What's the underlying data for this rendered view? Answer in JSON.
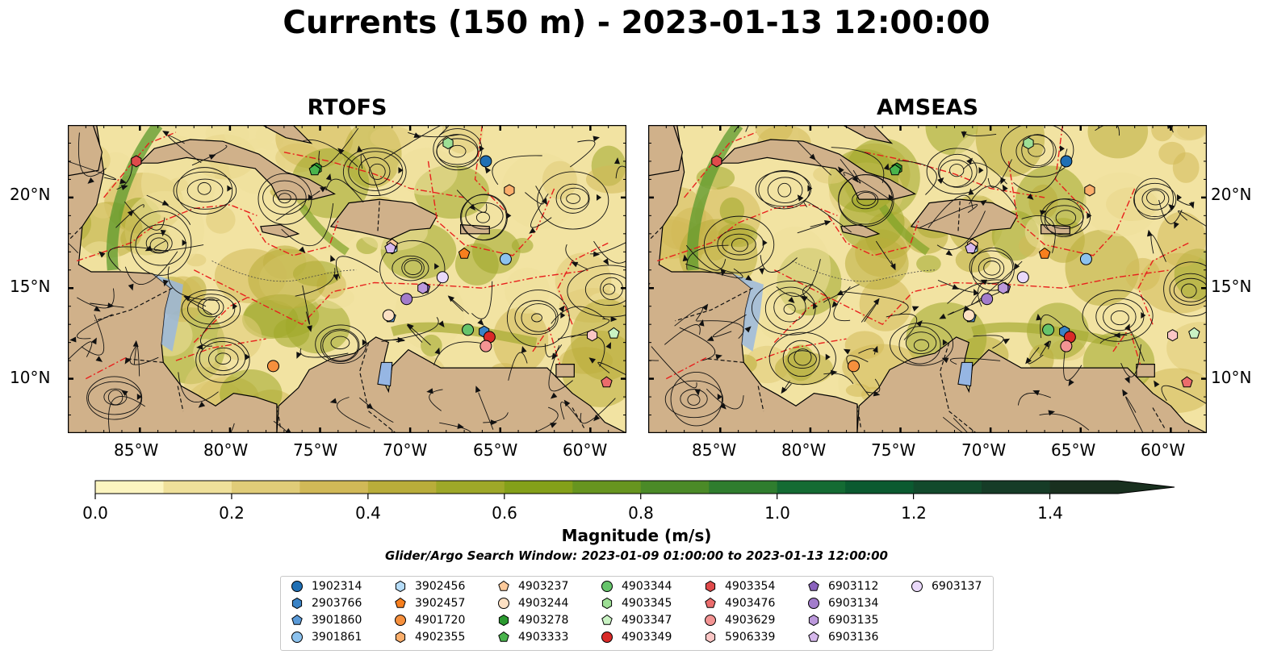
{
  "title": "Currents (150 m) - 2023-01-13 12:00:00",
  "panels": [
    {
      "title": "RTOFS"
    },
    {
      "title": "AMSEAS"
    }
  ],
  "lon_ticks": [
    "85°W",
    "80°W",
    "75°W",
    "70°W",
    "65°W",
    "60°W"
  ],
  "lat_ticks": [
    "20°N",
    "15°N",
    "10°N"
  ],
  "map_extent": {
    "lon": [
      -89,
      -58
    ],
    "lat": [
      7,
      24
    ]
  },
  "colorbar": {
    "label": "Magnitude (m/s)",
    "ticks": [
      "0.0",
      "0.2",
      "0.4",
      "0.6",
      "0.8",
      "1.0",
      "1.2",
      "1.4"
    ],
    "range": [
      0,
      1.5
    ],
    "extend": "max",
    "colors": [
      "#fcf5c0",
      "#efe09a",
      "#e0cc78",
      "#d1b957",
      "#b9ad3a",
      "#9ea828",
      "#84a019",
      "#67951f",
      "#4b8a27",
      "#2f7d2e",
      "#146b33",
      "#0b5a30",
      "#124a2c",
      "#163c27",
      "#19301f"
    ]
  },
  "search_window": "Glider/Argo Search Window: 2023-01-09 01:00:00 to 2023-01-13 12:00:00",
  "colors": {
    "ocean": "#96b6e3",
    "land": "#d0b18a",
    "eez": "#e8201d"
  },
  "legend": [
    {
      "id": "1902314",
      "marker": "circle",
      "color": "#1f6fb4"
    },
    {
      "id": "2903766",
      "marker": "hexagon",
      "color": "#3a83c6"
    },
    {
      "id": "3901860",
      "marker": "pentagon",
      "color": "#5a9ad8"
    },
    {
      "id": "3901861",
      "marker": "circle",
      "color": "#8cc2ee"
    },
    {
      "id": "3902456",
      "marker": "hexagon",
      "color": "#b5dcf8"
    },
    {
      "id": "3902457",
      "marker": "pentagon",
      "color": "#f77f1e"
    },
    {
      "id": "4901720",
      "marker": "circle",
      "color": "#f6903d"
    },
    {
      "id": "4902355",
      "marker": "hexagon",
      "color": "#fbae6b"
    },
    {
      "id": "4903237",
      "marker": "pentagon",
      "color": "#fcc99a"
    },
    {
      "id": "4903244",
      "marker": "circle",
      "color": "#fde0c3"
    },
    {
      "id": "4903278",
      "marker": "hexagon",
      "color": "#2b9a30"
    },
    {
      "id": "4903333",
      "marker": "pentagon",
      "color": "#49b44c"
    },
    {
      "id": "4903344",
      "marker": "circle",
      "color": "#66c46b"
    },
    {
      "id": "4903345",
      "marker": "hexagon",
      "color": "#9ddf95"
    },
    {
      "id": "4903347",
      "marker": "pentagon",
      "color": "#c9f2c3"
    },
    {
      "id": "4903349",
      "marker": "circle",
      "color": "#d92a28"
    },
    {
      "id": "4903354",
      "marker": "hexagon",
      "color": "#e04a4b"
    },
    {
      "id": "4903476",
      "marker": "pentagon",
      "color": "#eb6c6c"
    },
    {
      "id": "4903629",
      "marker": "circle",
      "color": "#f39493"
    },
    {
      "id": "5906339",
      "marker": "hexagon",
      "color": "#fbc6c5"
    },
    {
      "id": "6903112",
      "marker": "pentagon",
      "color": "#8a62bd"
    },
    {
      "id": "6903134",
      "marker": "circle",
      "color": "#a27ccb"
    },
    {
      "id": "6903135",
      "marker": "hexagon",
      "color": "#bc99dc"
    },
    {
      "id": "6903136",
      "marker": "pentagon",
      "color": "#d6b8ec"
    },
    {
      "id": "6903137",
      "marker": "circle",
      "color": "#ead9fa"
    }
  ],
  "floats": [
    {
      "id": "1902314",
      "lon": -65.8,
      "lat": 22.0
    },
    {
      "id": "2903766",
      "lon": -65.9,
      "lat": 12.6
    },
    {
      "id": "3901860",
      "lon": -71.1,
      "lat": 13.4
    },
    {
      "id": "3901861",
      "lon": -64.7,
      "lat": 16.6
    },
    {
      "id": "3902456",
      "lon": -71.0,
      "lat": 17.2
    },
    {
      "id": "3902457",
      "lon": -67.0,
      "lat": 16.9
    },
    {
      "id": "4901720",
      "lon": -77.6,
      "lat": 10.7
    },
    {
      "id": "4902355",
      "lon": -64.5,
      "lat": 20.4
    },
    {
      "id": "4903237",
      "lon": -71.0,
      "lat": 17.4
    },
    {
      "id": "4903244",
      "lon": -71.2,
      "lat": 13.5
    },
    {
      "id": "4903278",
      "lon": -75.2,
      "lat": 21.6
    },
    {
      "id": "4903333",
      "lon": -75.3,
      "lat": 21.5
    },
    {
      "id": "4903344",
      "lon": -66.8,
      "lat": 12.7
    },
    {
      "id": "4903345",
      "lon": -67.9,
      "lat": 23.0
    },
    {
      "id": "4903347",
      "lon": -58.7,
      "lat": 12.5
    },
    {
      "id": "4903349",
      "lon": -65.6,
      "lat": 12.3
    },
    {
      "id": "4903354",
      "lon": -85.2,
      "lat": 22.0
    },
    {
      "id": "4903476",
      "lon": -59.1,
      "lat": 9.8
    },
    {
      "id": "4903629",
      "lon": -65.8,
      "lat": 11.8
    },
    {
      "id": "5906339",
      "lon": -59.9,
      "lat": 12.4
    },
    {
      "id": "6903112",
      "lon": -69.2,
      "lat": 15.0
    },
    {
      "id": "6903134",
      "lon": -70.2,
      "lat": 14.4
    },
    {
      "id": "6903135",
      "lon": -69.3,
      "lat": 15.0
    },
    {
      "id": "6903136",
      "lon": -71.1,
      "lat": 17.2
    },
    {
      "id": "6903137",
      "lon": -68.2,
      "lat": 15.6
    }
  ]
}
